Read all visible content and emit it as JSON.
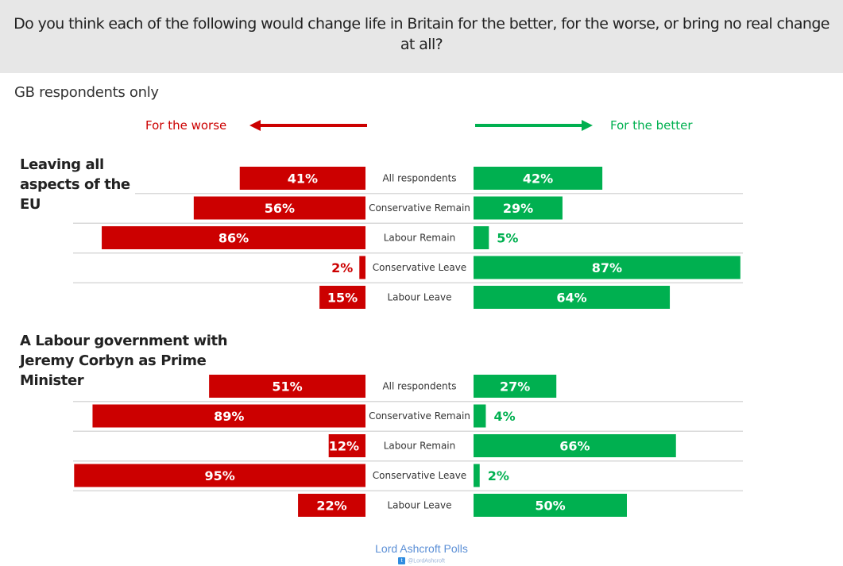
{
  "header": {
    "question": "Do you think each of the following would change life in Britain for the better, for the worse, or bring no real change at all?"
  },
  "subtitle": "GB respondents only",
  "legend": {
    "worse_label": "For the worse",
    "better_label": "For the better",
    "worse_color": "#cc0000",
    "better_color": "#00b050"
  },
  "footer": {
    "brand": "Lord Ashcroft Polls",
    "handle": "@LordAshcroft",
    "handle_icon": "twitter-icon"
  },
  "chart_data": {
    "type": "bar",
    "orientation": "horizontal-diverging",
    "title": "Do you think each of the following would change life in Britain for the better, for the worse, or bring no real change at all?",
    "subtitle": "GB respondents only",
    "unit": "%",
    "categories": [
      "All respondents",
      "Conservative Remain",
      "Labour Remain",
      "Conservative Leave",
      "Labour Leave"
    ],
    "legend": [
      "For the worse",
      "For the better"
    ],
    "grid": true,
    "xlim": [
      0,
      100
    ],
    "groups": [
      {
        "title": "Leaving all aspects of the EU",
        "title_lines": [
          "Leaving all",
          "aspects of the",
          "EU"
        ],
        "series": [
          {
            "name": "For the worse",
            "color": "#cc0000",
            "values": [
              41,
              56,
              86,
              2,
              15
            ]
          },
          {
            "name": "For the better",
            "color": "#00b050",
            "values": [
              42,
              29,
              5,
              87,
              64
            ]
          }
        ]
      },
      {
        "title": "A Labour government with Jeremy Corbyn as Prime Minister",
        "title_lines": [
          "A Labour government with",
          "Jeremy Corbyn as Prime",
          "Minister"
        ],
        "series": [
          {
            "name": "For the worse",
            "color": "#cc0000",
            "values": [
              51,
              89,
              12,
              95,
              22
            ]
          },
          {
            "name": "For the better",
            "color": "#00b050",
            "values": [
              27,
              4,
              66,
              2,
              50
            ]
          }
        ]
      }
    ]
  }
}
